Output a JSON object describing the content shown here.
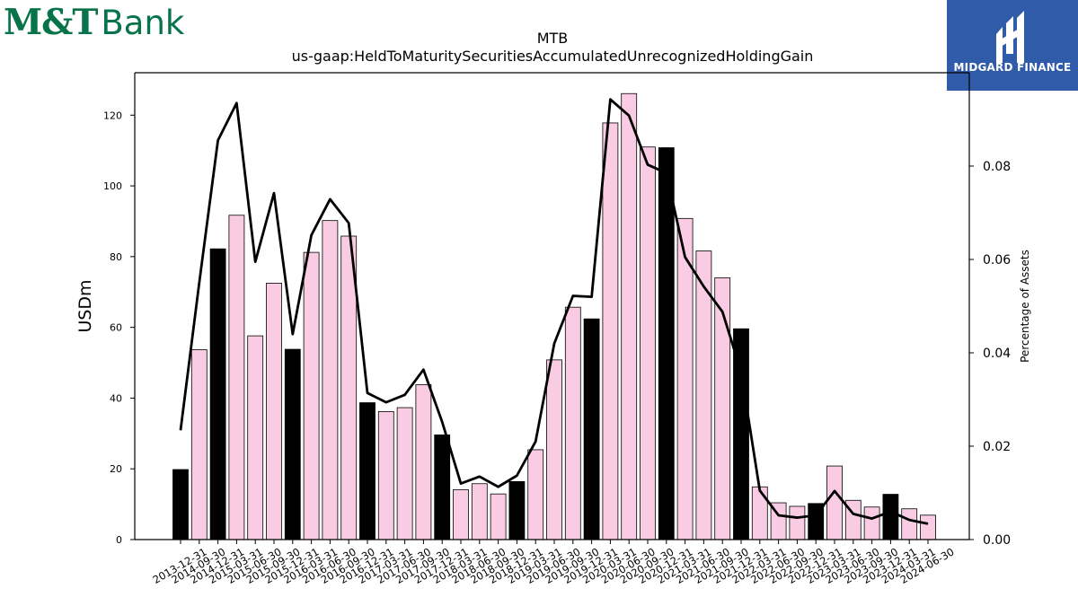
{
  "header": {
    "left_logo": {
      "mark": "M&T",
      "word": "Bank"
    },
    "right_logo": {
      "text": "MIDGARD FINANCE",
      "icon": "midgard-m-icon"
    }
  },
  "colors": {
    "brand_green": "#06734a",
    "brand_blue": "#2f5ba8",
    "bar_pink": "#f9cce4",
    "bar_black": "#000000",
    "line": "#000000"
  },
  "chart_data": {
    "type": "bar",
    "title": "MTB",
    "subtitle": "us-gaap:HeldToMaturitySecuritiesAccumulatedUnrecognizedHoldingGain",
    "ylabel": "USDm",
    "ylabel_right": "Percentage of Assets",
    "ylim": [
      0,
      132
    ],
    "ylim_right": [
      0,
      0.1
    ],
    "yticks": [
      0,
      20,
      40,
      60,
      80,
      100,
      120
    ],
    "yticks_right": [
      "0.00",
      "0.02",
      "0.04",
      "0.06",
      "0.08"
    ],
    "categories": [
      "2013-12-31",
      "2014-09-30",
      "2014-12-31",
      "2015-03-31",
      "2015-06-30",
      "2015-09-30",
      "2015-12-31",
      "2016-03-31",
      "2016-06-30",
      "2016-09-30",
      "2016-12-31",
      "2017-03-31",
      "2017-06-30",
      "2017-09-30",
      "2017-12-31",
      "2018-03-31",
      "2018-06-30",
      "2018-09-30",
      "2018-12-31",
      "2019-03-31",
      "2019-06-30",
      "2019-09-30",
      "2019-12-31",
      "2020-03-31",
      "2020-06-30",
      "2020-09-30",
      "2020-12-31",
      "2021-03-31",
      "2021-06-30",
      "2021-09-30",
      "2021-12-31",
      "2022-03-31",
      "2022-06-30",
      "2022-09-30",
      "2022-12-31",
      "2023-03-31",
      "2023-06-30",
      "2023-09-30",
      "2023-12-31",
      "2024-03-31",
      "2024-06-30"
    ],
    "series": [
      {
        "values": [
          19.8,
          53.7,
          82.2,
          91.7,
          57.6,
          72.5,
          53.8,
          81.2,
          90.2,
          85.8,
          38.7,
          36.2,
          37.3,
          43.8,
          29.6,
          14.1,
          15.8,
          12.9,
          16.4,
          25.4,
          50.8,
          65.7,
          62.4,
          117.8,
          126.1,
          111.0,
          110.8,
          90.8,
          81.6,
          74.0,
          59.6,
          14.9,
          10.4,
          9.4,
          10.2,
          20.8,
          11.1,
          9.2,
          12.8,
          8.7,
          6.9
        ]
      },
      {
        "axis": "right",
        "values": [
          0.0234,
          0.055,
          0.0855,
          0.0935,
          0.0595,
          0.0742,
          0.044,
          0.0652,
          0.0729,
          0.0678,
          0.0314,
          0.0294,
          0.031,
          0.0364,
          0.0252,
          0.012,
          0.0135,
          0.0113,
          0.0137,
          0.021,
          0.042,
          0.0522,
          0.052,
          0.0943,
          0.0908,
          0.0803,
          0.0785,
          0.0605,
          0.0542,
          0.0488,
          0.0359,
          0.0105,
          0.0052,
          0.0047,
          0.0052,
          0.0104,
          0.0055,
          0.0045,
          0.006,
          0.0042,
          0.0034
        ]
      }
    ],
    "bar_emphasis_dates": [
      "2013-12-31",
      "2014-12-31",
      "2015-12-31",
      "2016-12-31",
      "2017-12-31",
      "2018-12-31",
      "2019-12-31",
      "2020-12-31",
      "2021-12-31",
      "2022-12-31",
      "2023-12-31"
    ],
    "grid": false,
    "legend": "none"
  }
}
